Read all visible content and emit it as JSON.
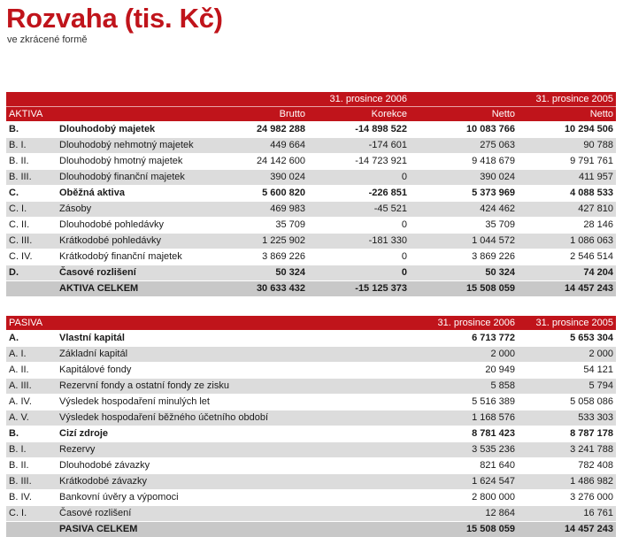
{
  "header": {
    "title": "Rozvaha (tis. Kč)",
    "subtitle": "ve zkrácené formě"
  },
  "aktiva": {
    "period_2006": "31. prosince 2006",
    "period_2005": "31. prosince 2005",
    "section_label": "AKTIVA",
    "col_brutto": "Brutto",
    "col_korekce": "Korekce",
    "col_netto_2006": "Netto",
    "col_netto_2005": "Netto",
    "rows": [
      {
        "code": "B.",
        "label": "Dlouhodobý majetek",
        "brutto": "24 982 288",
        "korekce": "-14 898 522",
        "netto_2006": "10 083 766",
        "netto_2005": "10 294 506"
      },
      {
        "code": "B.  I.",
        "label": "Dlouhodobý nehmotný majetek",
        "brutto": "449 664",
        "korekce": "-174 601",
        "netto_2006": "275 063",
        "netto_2005": "90 788"
      },
      {
        "code": "B.  II.",
        "label": "Dlouhodobý hmotný majetek",
        "brutto": "24 142 600",
        "korekce": "-14 723 921",
        "netto_2006": "9 418 679",
        "netto_2005": "9 791 761"
      },
      {
        "code": "B.  III.",
        "label": "Dlouhodobý finanční majetek",
        "brutto": "390 024",
        "korekce": "0",
        "netto_2006": "390 024",
        "netto_2005": "411 957"
      },
      {
        "code": "C.",
        "label": "Oběžná aktiva",
        "brutto": "5 600 820",
        "korekce": "-226 851",
        "netto_2006": "5 373 969",
        "netto_2005": "4 088 533"
      },
      {
        "code": "C.  I.",
        "label": "Zásoby",
        "brutto": "469 983",
        "korekce": "-45 521",
        "netto_2006": "424 462",
        "netto_2005": "427 810"
      },
      {
        "code": "C.  II.",
        "label": "Dlouhodobé pohledávky",
        "brutto": "35 709",
        "korekce": "0",
        "netto_2006": "35 709",
        "netto_2005": "28 146"
      },
      {
        "code": "C.  III.",
        "label": "Krátkodobé pohledávky",
        "brutto": "1 225 902",
        "korekce": "-181 330",
        "netto_2006": "1 044 572",
        "netto_2005": "1 086 063"
      },
      {
        "code": "C.  IV.",
        "label": "Krátkodobý finanční majetek",
        "brutto": "3 869 226",
        "korekce": "0",
        "netto_2006": "3 869 226",
        "netto_2005": "2 546 514"
      },
      {
        "code": "D.",
        "label": "Časové rozlišení",
        "brutto": "50 324",
        "korekce": "0",
        "netto_2006": "50 324",
        "netto_2005": "74 204"
      },
      {
        "code": "",
        "label": "AKTIVA CELKEM",
        "brutto": "30 633 432",
        "korekce": "-15 125 373",
        "netto_2006": "15 508 059",
        "netto_2005": "14 457 243"
      }
    ]
  },
  "pasiva": {
    "section_label": "PASIVA",
    "period_2006": "31. prosince 2006",
    "period_2005": "31. prosince 2005",
    "rows": [
      {
        "code": "A.",
        "label": "Vlastní kapitál",
        "v2006": "6 713 772",
        "v2005": "5 653 304"
      },
      {
        "code": "A.  I.",
        "label": "Základní kapitál",
        "v2006": "2 000",
        "v2005": "2 000"
      },
      {
        "code": "A.  II.",
        "label": "Kapitálové fondy",
        "v2006": "20 949",
        "v2005": "54 121"
      },
      {
        "code": "A.  III.",
        "label": "Rezervní fondy a ostatní fondy ze zisku",
        "v2006": "5 858",
        "v2005": "5 794"
      },
      {
        "code": "A.  IV.",
        "label": "Výsledek hospodaření minulých let",
        "v2006": "5 516 389",
        "v2005": "5 058 086"
      },
      {
        "code": "A.  V.",
        "label": "Výsledek hospodaření běžného účetního období",
        "v2006": "1 168 576",
        "v2005": "533 303"
      },
      {
        "code": "B.",
        "label": "Cizí zdroje",
        "v2006": "8 781 423",
        "v2005": "8 787 178"
      },
      {
        "code": "B.  I.",
        "label": "Rezervy",
        "v2006": "3 535 236",
        "v2005": "3 241 788"
      },
      {
        "code": "B.  II.",
        "label": "Dlouhodobé závazky",
        "v2006": "821 640",
        "v2005": "782 408"
      },
      {
        "code": "B.  III.",
        "label": "Krátkodobé závazky",
        "v2006": "1 624 547",
        "v2005": "1 486 982"
      },
      {
        "code": "B.  IV.",
        "label": "Bankovní úvěry a výpomoci",
        "v2006": "2 800 000",
        "v2005": "3 276 000"
      },
      {
        "code": "C.  I.",
        "label": "Časové rozlišení",
        "v2006": "12 864",
        "v2005": "16 761"
      },
      {
        "code": "",
        "label": "PASIVA CELKEM",
        "v2006": "15 508 059",
        "v2005": "14 457 243"
      }
    ]
  },
  "colors": {
    "accent_red": "#c0141b",
    "row_grey": "#dcdcdc",
    "total_grey": "#c8c8c8"
  }
}
